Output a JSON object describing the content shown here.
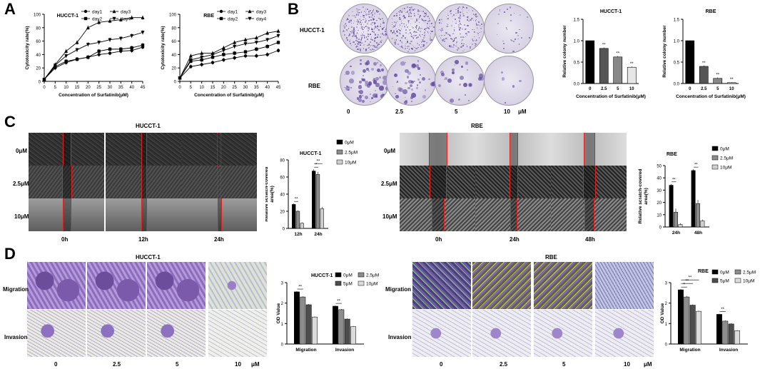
{
  "panels": {
    "a": "A",
    "b": "B",
    "c": "C",
    "d": "D"
  },
  "colors": {
    "line": "#000000",
    "bar_black": "#000000",
    "bar_dgray": "#555555",
    "bar_mgray": "#888888",
    "bar_lgray": "#cccccc",
    "scratch": "#e0201b",
    "crystal_violet": "#7a5aa8"
  },
  "a_xlabel": "Concentration of Surfatinib(μM)",
  "a_ylabel": "Cytotoxicity rate(%)",
  "b": {
    "row_labels": [
      "HUCCT-1",
      "RBE"
    ],
    "col_labels": [
      "0",
      "2.5",
      "5",
      "10"
    ],
    "unit": "μM"
  },
  "c": {
    "hucct_title": "HUCCT-1",
    "hucct_rows": [
      "0μM",
      "2.5μM",
      "10μM"
    ],
    "hucct_cols": [
      "0h",
      "12h",
      "24h"
    ],
    "rbe_title": "RBE",
    "rbe_rows": [
      "0μM",
      "2.5μM",
      "10μM"
    ],
    "rbe_cols": [
      "0h",
      "24h",
      "48h"
    ]
  },
  "d": {
    "hucct_title": "HUCCT-1",
    "rbe_title": "RBE",
    "rows": [
      "Migration",
      "Invasion"
    ],
    "cols": [
      "0",
      "2.5",
      "5",
      "10"
    ],
    "unit": "μM"
  },
  "chart_data": [
    {
      "id": "a1",
      "type": "line",
      "title": "HUCCT-1",
      "xlabel": "Concentration of Surfatinib(μM)",
      "ylabel": "Cytotoxicity rate(%)",
      "x": [
        0,
        5,
        10,
        15,
        20,
        25,
        30,
        35,
        40,
        45
      ],
      "xlim": [
        0,
        45
      ],
      "ylim": [
        0,
        100
      ],
      "xticks": [
        0,
        5,
        10,
        15,
        20,
        25,
        30,
        35,
        40,
        45
      ],
      "yticks": [
        0,
        20,
        40,
        60,
        80,
        100
      ],
      "series": [
        {
          "name": "day1",
          "marker": "circle",
          "values": [
            3,
            20,
            28,
            33,
            36,
            40,
            42,
            45,
            46,
            51
          ]
        },
        {
          "name": "day2",
          "marker": "square",
          "values": [
            3,
            22,
            30,
            33,
            36,
            45,
            48,
            48,
            50,
            54
          ]
        },
        {
          "name": "day3",
          "marker": "triangle",
          "values": [
            3,
            25,
            45,
            58,
            80,
            88,
            90,
            92,
            95,
            95
          ]
        },
        {
          "name": "day4",
          "marker": "triangle-down",
          "values": [
            3,
            24,
            38,
            47,
            55,
            58,
            62,
            64,
            68,
            73
          ]
        }
      ],
      "legend": "top"
    },
    {
      "id": "a2",
      "type": "line",
      "title": "RBE",
      "xlabel": "Concentration of Surfatinib(μM)",
      "ylabel": "Cytotoxicity rate(%)",
      "x": [
        0,
        5,
        10,
        15,
        20,
        25,
        30,
        35,
        40,
        45
      ],
      "xlim": [
        0,
        45
      ],
      "ylim": [
        0,
        100
      ],
      "xticks": [
        0,
        5,
        10,
        15,
        20,
        25,
        30,
        35,
        40,
        45
      ],
      "yticks": [
        0,
        20,
        40,
        60,
        80,
        100
      ],
      "series": [
        {
          "name": "day1",
          "marker": "circle",
          "values": [
            5,
            22,
            25,
            28,
            32,
            35,
            38,
            38,
            40,
            46
          ]
        },
        {
          "name": "day2",
          "marker": "square",
          "values": [
            5,
            30,
            32,
            36,
            40,
            42,
            44,
            48,
            52,
            58
          ]
        },
        {
          "name": "day3",
          "marker": "triangle",
          "values": [
            5,
            38,
            42,
            42,
            50,
            58,
            62,
            65,
            72,
            75
          ]
        },
        {
          "name": "day4",
          "marker": "triangle-down",
          "values": [
            5,
            32,
            36,
            40,
            46,
            52,
            56,
            58,
            62,
            68
          ]
        }
      ],
      "legend": "top"
    },
    {
      "id": "b1",
      "type": "bar",
      "title": "HUCCT-1",
      "xlabel": "Concentration of Surfatinib(μM)",
      "ylabel": "Relative colony number",
      "categories": [
        "0",
        "2.5",
        "5",
        "10"
      ],
      "values": [
        1.0,
        0.82,
        0.62,
        0.38
      ],
      "errors": [
        0,
        0.02,
        0.02,
        0.02
      ],
      "sig": [
        "",
        "**",
        "**",
        "**"
      ],
      "ylim": [
        0,
        1.5
      ],
      "yticks": [
        0.0,
        0.5,
        1.0,
        1.5
      ]
    },
    {
      "id": "b2",
      "type": "bar",
      "title": "RBE",
      "xlabel": "Concentration of Surfatinib(μM)",
      "ylabel": "Relative colony number",
      "categories": [
        "0",
        "2.5",
        "5",
        "10"
      ],
      "values": [
        1.0,
        0.4,
        0.12,
        0.02
      ],
      "errors": [
        0,
        0.02,
        0.02,
        0.01
      ],
      "sig": [
        "",
        "**",
        "**",
        "**"
      ],
      "ylim": [
        0,
        1.5
      ],
      "yticks": [
        0.0,
        0.5,
        1.0,
        1.5
      ]
    },
    {
      "id": "c1",
      "type": "bar",
      "title": "HUCCT-1",
      "ylabel": "Relative scratch-covered area(%)",
      "categories": [
        "12h",
        "24h"
      ],
      "ylim": [
        0,
        80
      ],
      "yticks": [
        0,
        20,
        40,
        60,
        80
      ],
      "series": [
        {
          "name": "0μM",
          "values": [
            28,
            67
          ],
          "errors": [
            1,
            2
          ]
        },
        {
          "name": "2.5μM",
          "values": [
            20,
            63
          ],
          "errors": [
            1,
            3
          ]
        },
        {
          "name": "10μM",
          "values": [
            6,
            23
          ],
          "errors": [
            1,
            2
          ]
        }
      ],
      "annotations": [
        {
          "text": "**",
          "group": 0
        },
        {
          "text": "*",
          "group": 1
        },
        {
          "text": "**",
          "group": 1
        }
      ]
    },
    {
      "id": "c2",
      "type": "bar",
      "title": "RBE",
      "ylabel": "Relative scratch-covered area(%)",
      "categories": [
        "24h",
        "48h"
      ],
      "ylim": [
        0,
        50
      ],
      "yticks": [
        0,
        10,
        20,
        30,
        40,
        50
      ],
      "series": [
        {
          "name": "0μM",
          "values": [
            34,
            46
          ],
          "errors": [
            1,
            1
          ]
        },
        {
          "name": "2.5μM",
          "values": [
            12,
            19
          ],
          "errors": [
            3,
            3
          ]
        },
        {
          "name": "10μM",
          "values": [
            2,
            5
          ],
          "errors": [
            1,
            1
          ]
        }
      ],
      "annotations": [
        {
          "text": "**",
          "group": 0
        },
        {
          "text": "**",
          "group": 1
        }
      ]
    },
    {
      "id": "d1",
      "type": "bar",
      "title": "HUCCT-1",
      "ylabel": "OD Value",
      "categories": [
        "Migration",
        "Invasion"
      ],
      "ylim": [
        0,
        3
      ],
      "yticks": [
        0,
        1,
        2,
        3
      ],
      "series": [
        {
          "name": "0μM",
          "values": [
            2.55,
            1.85
          ],
          "errors": [
            0.03,
            0.03
          ]
        },
        {
          "name": "2.5μM",
          "values": [
            2.3,
            1.68
          ],
          "errors": [
            0.03,
            0.03
          ]
        },
        {
          "name": "5μM",
          "values": [
            1.92,
            1.22
          ],
          "errors": [
            0.03,
            0.03
          ]
        },
        {
          "name": "10μM",
          "values": [
            1.32,
            0.85
          ],
          "errors": [
            0.03,
            0.03
          ]
        }
      ],
      "annotations": [
        {
          "text": "**",
          "group": 0
        },
        {
          "text": "**",
          "group": 1
        }
      ]
    },
    {
      "id": "d2",
      "type": "bar",
      "title": "RBE",
      "ylabel": "OD Value",
      "categories": [
        "Migration",
        "Invasion"
      ],
      "ylim": [
        0,
        3
      ],
      "yticks": [
        0,
        1,
        2,
        3
      ],
      "series": [
        {
          "name": "0μM",
          "values": [
            2.65,
            1.45
          ],
          "errors": [
            0.03,
            0.03
          ]
        },
        {
          "name": "2.5μM",
          "values": [
            2.3,
            1.12
          ],
          "errors": [
            0.05,
            0.03
          ]
        },
        {
          "name": "5μM",
          "values": [
            1.9,
            0.98
          ],
          "errors": [
            0.03,
            0.03
          ]
        },
        {
          "name": "10μM",
          "values": [
            1.6,
            0.65
          ],
          "errors": [
            0.03,
            0.03
          ]
        }
      ],
      "annotations": [
        {
          "text": "*",
          "group": 0
        },
        {
          "text": "**",
          "group": 0
        },
        {
          "text": "**",
          "group": 0
        },
        {
          "text": "**",
          "group": 1
        }
      ]
    }
  ]
}
